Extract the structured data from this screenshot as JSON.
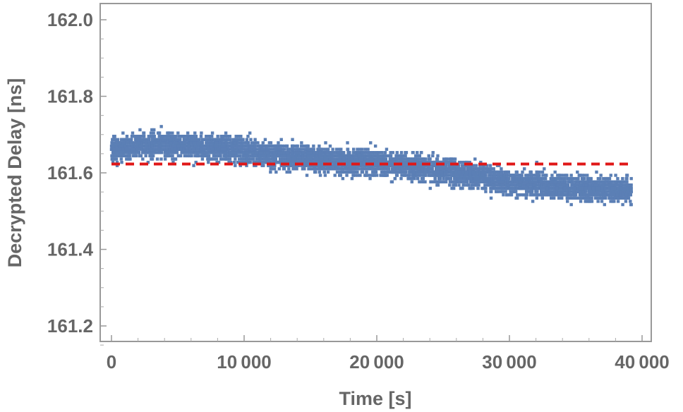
{
  "chart_data": {
    "type": "scatter",
    "title": "",
    "xlabel": "Time [s]",
    "ylabel": "Decrypted Delay [ns]",
    "xlim": [
      -1800,
      40000
    ],
    "ylim": [
      161.15,
      162.05
    ],
    "grid": false,
    "legend": "none",
    "x_ticks": [
      0,
      10000,
      20000,
      30000,
      40000
    ],
    "x_tick_labels": [
      "0",
      "10 000",
      "20 000",
      "30 000",
      "40 000"
    ],
    "y_ticks": [
      161.2,
      161.4,
      161.6,
      161.8,
      162.0
    ],
    "y_tick_labels": [
      "161.2",
      "161.4",
      "161.6",
      "161.8",
      "162.0"
    ],
    "series": [
      {
        "kind": "points",
        "color": "#5b7fb5",
        "values_note": "dense band; trend center vs time",
        "x": [
          0,
          2000,
          4000,
          6000,
          8000,
          10000,
          12000,
          14000,
          16000,
          18000,
          20000,
          22000,
          24000,
          26000,
          28000,
          30000,
          32000,
          34000,
          36000,
          38000,
          39200
        ],
        "y": [
          161.665,
          161.67,
          161.675,
          161.67,
          161.665,
          161.66,
          161.645,
          161.64,
          161.635,
          161.63,
          161.625,
          161.62,
          161.61,
          161.6,
          161.59,
          161.575,
          161.57,
          161.565,
          161.56,
          161.555,
          161.555
        ],
        "spread": 0.06
      },
      {
        "kind": "reference-line",
        "style": "dashed",
        "color": "#e01818",
        "x": [
          0,
          39200
        ],
        "y": [
          161.623,
          161.623
        ]
      }
    ]
  }
}
